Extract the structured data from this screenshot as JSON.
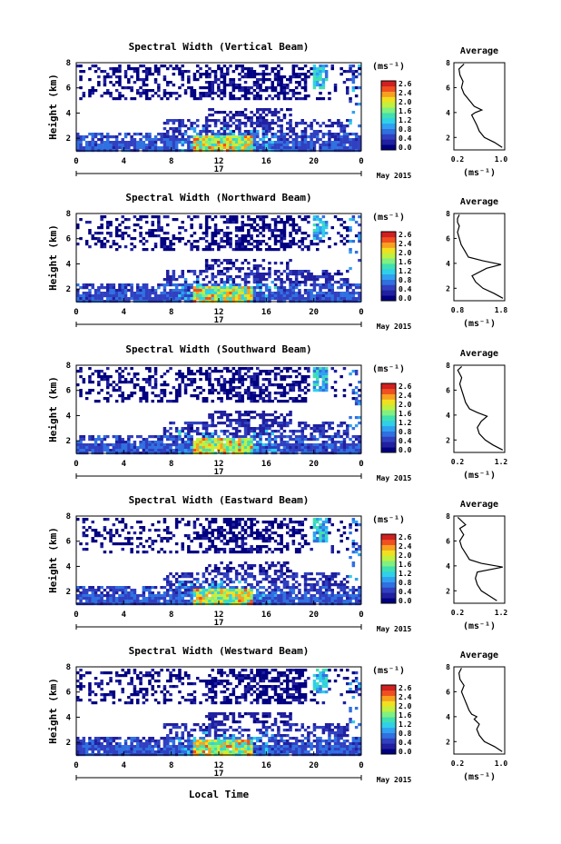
{
  "colors": {
    "colormap": [
      "#000080",
      "#2020a0",
      "#3040c0",
      "#3070e0",
      "#30a0f0",
      "#30d0e8",
      "#40e0b0",
      "#80f080",
      "#c0f040",
      "#f0e020",
      "#f8a020",
      "#f05020",
      "#d02020"
    ],
    "background": "#ffffff",
    "axis": "#000000"
  },
  "figure": {
    "xlabel": "Local Time",
    "date_label": "May 2015",
    "day_label": "17",
    "colorbar_unit": "(ms⁻¹)",
    "colorbar_ticks": [
      "2.6",
      "2.4",
      "2.0",
      "1.6",
      "1.2",
      "0.8",
      "0.4",
      "0.0"
    ],
    "x_ticks": [
      "0",
      "4",
      "8",
      "12",
      "16",
      "20",
      "0"
    ],
    "y_ticks": [
      "8",
      "6",
      "4",
      "2"
    ],
    "ylabel": "Height (km)",
    "avg_title": "Average",
    "avg_xlabel": "(ms⁻¹)",
    "avg_y_ticks": [
      "8",
      "6",
      "4",
      "2"
    ]
  },
  "chart_data": [
    {
      "type": "heatmap",
      "title": "Spectral Width (Vertical Beam)",
      "xlabel": "",
      "ylabel": "Height (km)",
      "xlim": [
        0,
        24
      ],
      "ylim": [
        1,
        8
      ],
      "colorbar_range": [
        0.0,
        2.6
      ],
      "avg": {
        "type": "line",
        "title": "Average",
        "x_ticks": [
          "0.2",
          "1.0"
        ],
        "xlim": [
          0.0,
          1.0
        ],
        "x": [
          0.95,
          0.8,
          0.6,
          0.5,
          0.45,
          0.4,
          0.35,
          0.42,
          0.55,
          0.4,
          0.3,
          0.2,
          0.15,
          0.18,
          0.12,
          0.1,
          0.2
        ],
        "y": [
          1.2,
          1.6,
          2.0,
          2.5,
          3.0,
          3.4,
          3.8,
          4.0,
          4.2,
          4.5,
          5.0,
          5.5,
          6.0,
          6.5,
          7.0,
          7.5,
          7.9
        ]
      }
    },
    {
      "type": "heatmap",
      "title": "Spectral Width (Northward Beam)",
      "xlabel": "",
      "ylabel": "Height (km)",
      "xlim": [
        0,
        24
      ],
      "ylim": [
        1,
        8
      ],
      "colorbar_range": [
        0.0,
        2.6
      ],
      "avg": {
        "type": "line",
        "title": "Average",
        "x_ticks": [
          "0.8",
          "1.8"
        ],
        "xlim": [
          0.4,
          1.8
        ],
        "x": [
          1.75,
          1.5,
          1.2,
          1.0,
          0.9,
          1.3,
          1.7,
          1.2,
          0.8,
          0.7,
          0.6,
          0.55,
          0.5,
          0.55,
          0.5,
          0.5,
          0.55
        ],
        "y": [
          1.2,
          1.6,
          2.0,
          2.5,
          3.0,
          3.6,
          3.9,
          4.2,
          4.5,
          5.0,
          5.5,
          6.0,
          6.5,
          7.0,
          7.3,
          7.6,
          7.9
        ]
      }
    },
    {
      "type": "heatmap",
      "title": "Spectral Width (Southward Beam)",
      "xlabel": "",
      "ylabel": "Height (km)",
      "xlim": [
        0,
        24
      ],
      "ylim": [
        1,
        8
      ],
      "colorbar_range": [
        0.0,
        2.6
      ],
      "avg": {
        "type": "line",
        "title": "Average",
        "x_ticks": [
          "0.2",
          "1.2"
        ],
        "xlim": [
          0.0,
          1.3
        ],
        "x": [
          1.25,
          1.0,
          0.8,
          0.65,
          0.6,
          0.7,
          0.85,
          0.6,
          0.4,
          0.3,
          0.25,
          0.2,
          0.15,
          0.2,
          0.15,
          0.1,
          0.2
        ],
        "y": [
          1.2,
          1.6,
          2.0,
          2.5,
          3.0,
          3.5,
          3.9,
          4.2,
          4.5,
          5.0,
          5.5,
          6.0,
          6.5,
          7.0,
          7.3,
          7.6,
          7.9
        ]
      }
    },
    {
      "type": "heatmap",
      "title": "Spectral Width (Eastward Beam)",
      "xlabel": "",
      "ylabel": "Height (km)",
      "xlim": [
        0,
        24
      ],
      "ylim": [
        1,
        8
      ],
      "colorbar_range": [
        0.0,
        2.6
      ],
      "avg": {
        "type": "line",
        "title": "Average",
        "x_ticks": [
          "0.2",
          "1.2"
        ],
        "xlim": [
          0.0,
          1.3
        ],
        "x": [
          1.1,
          0.9,
          0.7,
          0.6,
          0.55,
          0.6,
          1.25,
          0.7,
          0.4,
          0.3,
          0.2,
          0.15,
          0.25,
          0.15,
          0.3,
          0.2,
          0.1
        ],
        "y": [
          1.2,
          1.6,
          2.0,
          2.5,
          3.0,
          3.5,
          3.9,
          4.2,
          4.5,
          5.0,
          5.5,
          6.0,
          6.5,
          7.0,
          7.3,
          7.6,
          7.9
        ]
      }
    },
    {
      "type": "heatmap",
      "title": "Spectral Width (Westward Beam)",
      "xlabel": "Local Time",
      "ylabel": "Height (km)",
      "xlim": [
        0,
        24
      ],
      "ylim": [
        1,
        8
      ],
      "colorbar_range": [
        0.0,
        2.6
      ],
      "avg": {
        "type": "line",
        "title": "Average",
        "x_ticks": [
          "0.2",
          "1.0"
        ],
        "xlim": [
          0.0,
          1.0
        ],
        "x": [
          0.95,
          0.8,
          0.6,
          0.5,
          0.45,
          0.5,
          0.4,
          0.45,
          0.35,
          0.3,
          0.25,
          0.2,
          0.15,
          0.2,
          0.12,
          0.1,
          0.15
        ],
        "y": [
          1.2,
          1.6,
          2.0,
          2.5,
          3.0,
          3.4,
          3.8,
          4.0,
          4.2,
          4.5,
          5.0,
          5.5,
          6.0,
          6.5,
          7.0,
          7.5,
          7.9
        ]
      }
    }
  ]
}
